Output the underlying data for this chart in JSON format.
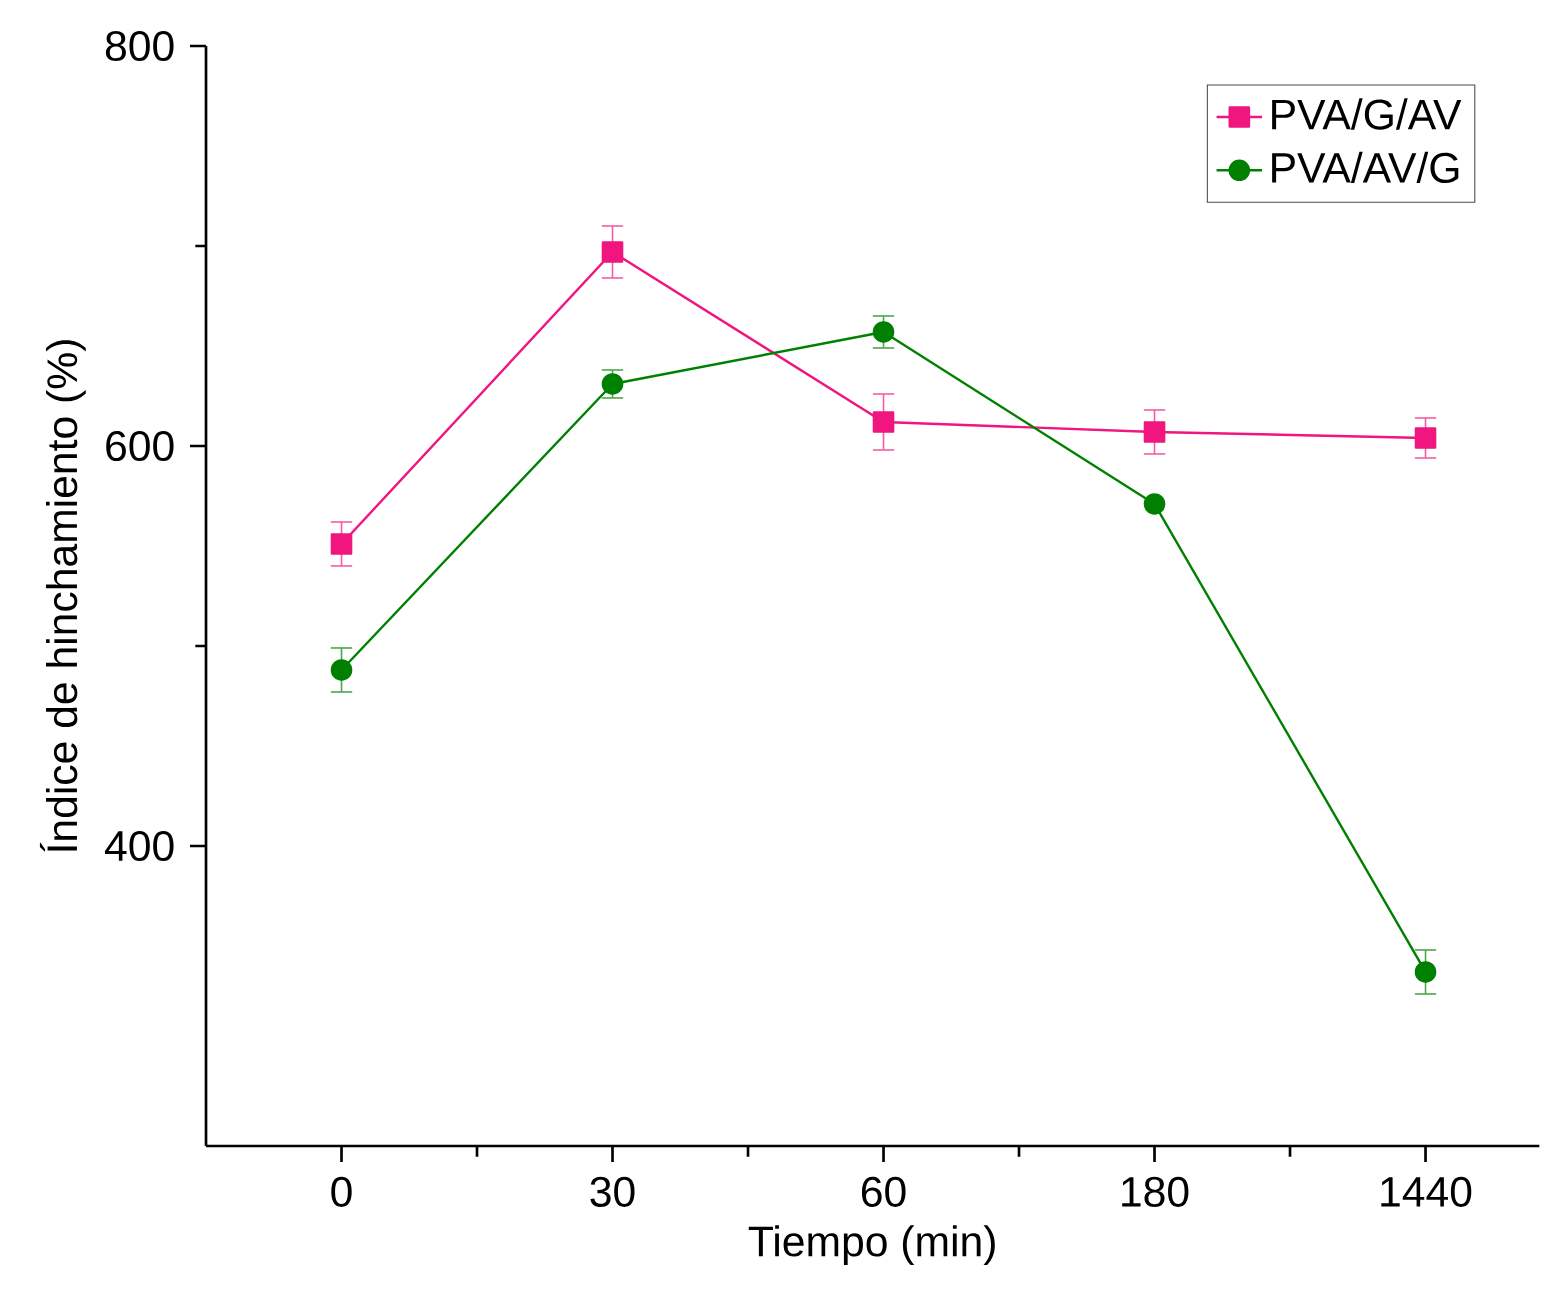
{
  "chart_data": {
    "type": "line",
    "xlabel": "Tiempo (min)",
    "ylabel": "Índice de hinchamiento (%)",
    "categories": [
      "0",
      "30",
      "60",
      "180",
      "1440"
    ],
    "ylim": [
      250,
      800
    ],
    "yticks": [
      400,
      600,
      800
    ],
    "legend": "top right",
    "series": [
      {
        "name": "PVA/G/AV",
        "color": "#f0157f",
        "marker": "square",
        "values": [
          551,
          697,
          612,
          607,
          604
        ],
        "errors": [
          11,
          13,
          14,
          11,
          10
        ]
      },
      {
        "name": "PVA/AV/G",
        "color": "#008000",
        "marker": "circle",
        "values": [
          488,
          631,
          657,
          571,
          337
        ],
        "errors": [
          11,
          7,
          8,
          null,
          11
        ]
      }
    ]
  }
}
